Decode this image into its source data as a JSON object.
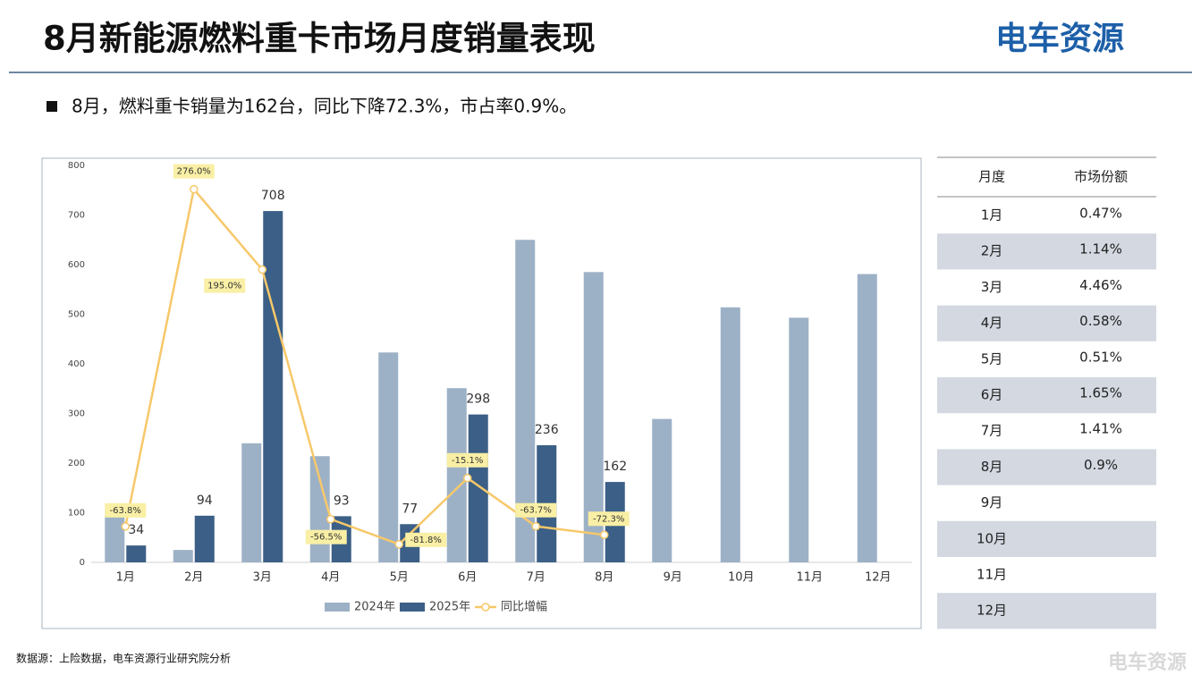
{
  "header": {
    "title": "8月新能源燃料重卡市场月度销量表现",
    "logo": "电车资源"
  },
  "note": "8月，燃料重卡销量为162台，同比下降72.3%，市占率0.9%。",
  "chart_data": {
    "type": "bar-line",
    "categories": [
      "1月",
      "2月",
      "3月",
      "4月",
      "5月",
      "6月",
      "7月",
      "8月",
      "9月",
      "10月",
      "11月",
      "12月"
    ],
    "series": [
      {
        "name": "2024年",
        "color": "#9db1c6",
        "values": [
          94,
          25,
          240,
          214,
          423,
          351,
          650,
          585,
          289,
          514,
          493,
          581
        ]
      },
      {
        "name": "2025年",
        "color": "#3b5f86",
        "values": [
          34,
          94,
          708,
          93,
          77,
          298,
          236,
          162,
          null,
          null,
          null,
          null
        ]
      },
      {
        "name": "同比增幅",
        "type": "line",
        "axis": "y2",
        "color": "#f7c86a",
        "values": [
          -63.8,
          276.0,
          195.0,
          -56.5,
          -81.8,
          -15.1,
          -63.7,
          -72.3,
          null,
          null,
          null,
          null
        ],
        "value_labels": [
          "-63.8%",
          "276.0%",
          "195.0%",
          "-56.5%",
          "-81.8%",
          "-15.1%",
          "-63.7%",
          "-72.3%",
          null,
          null,
          null,
          null
        ]
      }
    ],
    "ylim": [
      0,
      800
    ],
    "yticks": [
      0,
      100,
      200,
      300,
      400,
      500,
      600,
      700,
      800
    ],
    "y2lim": [
      -100,
      300
    ],
    "legend": "bottom"
  },
  "table": {
    "header": [
      "月度",
      "市场份额"
    ],
    "rows": [
      [
        "1月",
        "0.47%"
      ],
      [
        "2月",
        "1.14%"
      ],
      [
        "3月",
        "4.46%"
      ],
      [
        "4月",
        "0.58%"
      ],
      [
        "5月",
        "0.51%"
      ],
      [
        "6月",
        "1.65%"
      ],
      [
        "7月",
        "1.41%"
      ],
      [
        "8月",
        "0.9%"
      ],
      [
        "9月",
        null
      ],
      [
        "10月",
        null
      ],
      [
        "11月",
        null
      ],
      [
        "12月",
        null
      ]
    ]
  },
  "source": "数据源：上险数据，电车资源行业研究院分析",
  "watermark": "电车资源"
}
